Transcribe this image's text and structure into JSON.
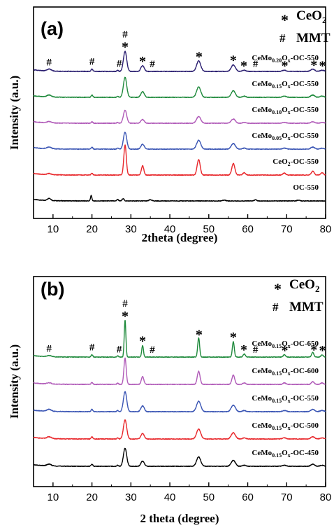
{
  "figure": {
    "panels": [
      "(a)",
      "(b)"
    ]
  },
  "chart_data": [
    {
      "panel": "(a)",
      "type": "line",
      "xlabel": "2theta (degree)",
      "ylabel": "Intensity (a.u.)",
      "xlim": [
        5,
        80
      ],
      "xticks": [
        10,
        20,
        30,
        40,
        50,
        60,
        70,
        80
      ],
      "legend": {
        "placement": "top-right",
        "entries": [
          {
            "symbol": "*",
            "label": "CeO",
            "sub": "2"
          },
          {
            "symbol": "#",
            "label": "MMT",
            "sub": ""
          }
        ]
      },
      "series": [
        {
          "name": "OC-550",
          "label_parts": [
            [
              "OC-550",
              ""
            ]
          ],
          "color": "#000000",
          "offset": 0,
          "profile": "OC"
        },
        {
          "name": "CeO2-OC-550",
          "label_parts": [
            [
              "CeO",
              ""
            ],
            [
              "2",
              "sub"
            ],
            [
              "-OC-550",
              ""
            ]
          ],
          "color": "#e8262a",
          "offset": 1,
          "profile": "CeO2",
          "scale": 1.0
        },
        {
          "name": "CeMo0.05Ox-OC-550",
          "label_parts": [
            [
              "CeMo",
              ""
            ],
            [
              "0.05",
              "sub"
            ],
            [
              "O",
              ""
            ],
            [
              "x",
              "sub"
            ],
            [
              "-OC-550",
              ""
            ]
          ],
          "color": "#3a55b4",
          "offset": 2,
          "profile": "CeMo",
          "scale": 0.85
        },
        {
          "name": "CeMo0.10Ox-OC-550",
          "label_parts": [
            [
              "CeMo",
              ""
            ],
            [
              "0.10",
              "sub"
            ],
            [
              "O",
              ""
            ],
            [
              "x",
              "sub"
            ],
            [
              "-OC-550",
              ""
            ]
          ],
          "color": "#b05ab8",
          "offset": 3,
          "profile": "CeMo",
          "scale": 0.65
        },
        {
          "name": "CeMo0.15Ox-OC-550",
          "label_parts": [
            [
              "CeMo",
              ""
            ],
            [
              "0.15",
              "sub"
            ],
            [
              "O",
              ""
            ],
            [
              "x",
              "sub"
            ],
            [
              "-OC-550",
              ""
            ]
          ],
          "color": "#1f8a3c",
          "offset": 4,
          "profile": "CeMo",
          "scale": 1.0
        },
        {
          "name": "CeMo0.20Ox-OC-550",
          "label_parts": [
            [
              "CeMo",
              ""
            ],
            [
              "0.20",
              "sub"
            ],
            [
              "O",
              ""
            ],
            [
              "x",
              "sub"
            ],
            [
              "-OC-550",
              ""
            ]
          ],
          "color": "#2a1e70",
          "offset": 5,
          "profile": "CeMo",
          "scale": 1.0
        }
      ],
      "markers": [
        {
          "x": 9,
          "symbol": "#"
        },
        {
          "x": 20,
          "symbol": "#"
        },
        {
          "x": 27,
          "symbol": "#"
        },
        {
          "x": 28.5,
          "symbol": "#*"
        },
        {
          "x": 33,
          "symbol": "*"
        },
        {
          "x": 35.5,
          "symbol": "#"
        },
        {
          "x": 47.5,
          "symbol": "*"
        },
        {
          "x": 56.3,
          "symbol": "*"
        },
        {
          "x": 59,
          "symbol": "*"
        },
        {
          "x": 62,
          "symbol": "#"
        },
        {
          "x": 69.5,
          "symbol": "*"
        },
        {
          "x": 77,
          "symbol": "*"
        },
        {
          "x": 79.2,
          "symbol": "*"
        }
      ]
    },
    {
      "panel": "(b)",
      "type": "line",
      "xlabel": "2 theta (degree)",
      "ylabel": "Intensity (a.u.)",
      "xlim": [
        5,
        80
      ],
      "xticks": [
        10,
        20,
        30,
        40,
        50,
        60,
        70,
        80
      ],
      "legend": {
        "placement": "top-right",
        "entries": [
          {
            "symbol": "*",
            "label": "CeO",
            "sub": "2"
          },
          {
            "symbol": "#",
            "label": "MMT",
            "sub": ""
          }
        ]
      },
      "series": [
        {
          "name": "CeMo0.15Ox-OC-450",
          "label_parts": [
            [
              "CeMo",
              ""
            ],
            [
              "0.15",
              "sub"
            ],
            [
              "O",
              ""
            ],
            [
              "x",
              "sub"
            ],
            [
              "-OC-450",
              ""
            ]
          ],
          "color": "#000000",
          "offset": 0,
          "profile": "CeMo",
          "scale": 0.9
        },
        {
          "name": "CeMo0.15Ox-OC-500",
          "label_parts": [
            [
              "CeMo",
              ""
            ],
            [
              "0.15",
              "sub"
            ],
            [
              "O",
              ""
            ],
            [
              "x",
              "sub"
            ],
            [
              "-OC-500",
              ""
            ]
          ],
          "color": "#e8262a",
          "offset": 1,
          "profile": "CeMo",
          "scale": 0.95
        },
        {
          "name": "CeMo0.15Ox-OC-550",
          "label_parts": [
            [
              "CeMo",
              ""
            ],
            [
              "0.15",
              "sub"
            ],
            [
              "O",
              ""
            ],
            [
              "x",
              "sub"
            ],
            [
              "-OC-550",
              ""
            ]
          ],
          "color": "#3a55b4",
          "offset": 2,
          "profile": "CeMo",
          "scale": 1.0
        },
        {
          "name": "CeMo0.15Ox-OC-600",
          "label_parts": [
            [
              "CeMo",
              ""
            ],
            [
              "0.15",
              "sub"
            ],
            [
              "O",
              ""
            ],
            [
              "x",
              "sub"
            ],
            [
              "-OC-600",
              ""
            ]
          ],
          "color": "#b05ab8",
          "offset": 3,
          "profile": "CeMoSharp",
          "scale": 1.0
        },
        {
          "name": "CeMo0.15Ox-OC-650",
          "label_parts": [
            [
              "CeMo",
              ""
            ],
            [
              "0.15",
              "sub"
            ],
            [
              "O",
              ""
            ],
            [
              "x",
              "sub"
            ],
            [
              "-OC-650",
              ""
            ]
          ],
          "color": "#1f8a3c",
          "offset": 4,
          "profile": "CeMoSharper",
          "scale": 1.0
        }
      ],
      "markers": [
        {
          "x": 9,
          "symbol": "#"
        },
        {
          "x": 20,
          "symbol": "#"
        },
        {
          "x": 27,
          "symbol": "#"
        },
        {
          "x": 28.5,
          "symbol": "#*"
        },
        {
          "x": 33,
          "symbol": "*"
        },
        {
          "x": 35.5,
          "symbol": "#"
        },
        {
          "x": 47.5,
          "symbol": "*"
        },
        {
          "x": 56.3,
          "symbol": "*"
        },
        {
          "x": 59,
          "symbol": "*"
        },
        {
          "x": 62,
          "symbol": "#"
        },
        {
          "x": 69.5,
          "symbol": "*"
        },
        {
          "x": 77,
          "symbol": "*"
        },
        {
          "x": 79.2,
          "symbol": "*"
        }
      ]
    }
  ]
}
